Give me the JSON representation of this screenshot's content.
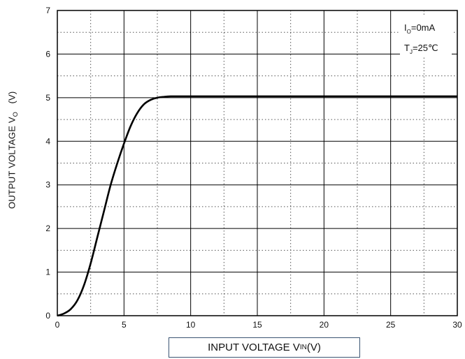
{
  "chart_data": {
    "type": "line",
    "x_ticks": [
      "0",
      "5",
      "10",
      "15",
      "20",
      "25",
      "30"
    ],
    "y_ticks": [
      "0",
      "1",
      "2",
      "3",
      "4",
      "5",
      "6",
      "7"
    ],
    "xlim": [
      0,
      30
    ],
    "ylim": [
      0,
      7
    ],
    "xlabel": {
      "main": "INPUT VOLTAGE V",
      "sub": "IN",
      "unit": "(V)"
    },
    "ylabel": {
      "main": "OUTPUT VOLTAGE  V",
      "sub": "O",
      "unit": "   (V)"
    },
    "annotations": [
      {
        "main": "I",
        "sub": "O",
        "rest": "=0mA"
      },
      {
        "main": "T",
        "sub": "J",
        "rest": "=25℃"
      }
    ],
    "grid": true,
    "series": [
      {
        "color": "#000000",
        "x": [
          0,
          0.5,
          1,
          1.5,
          2,
          2.5,
          3,
          3.5,
          4,
          4.5,
          5,
          5.5,
          6,
          6.5,
          7,
          7.5,
          8,
          8.5,
          9,
          10,
          12,
          15,
          20,
          25,
          30
        ],
        "y": [
          0,
          0.05,
          0.15,
          0.35,
          0.7,
          1.2,
          1.8,
          2.4,
          3.0,
          3.5,
          3.95,
          4.35,
          4.65,
          4.85,
          4.95,
          5.0,
          5.02,
          5.03,
          5.03,
          5.03,
          5.03,
          5.03,
          5.03,
          5.03,
          5.03
        ]
      }
    ]
  }
}
